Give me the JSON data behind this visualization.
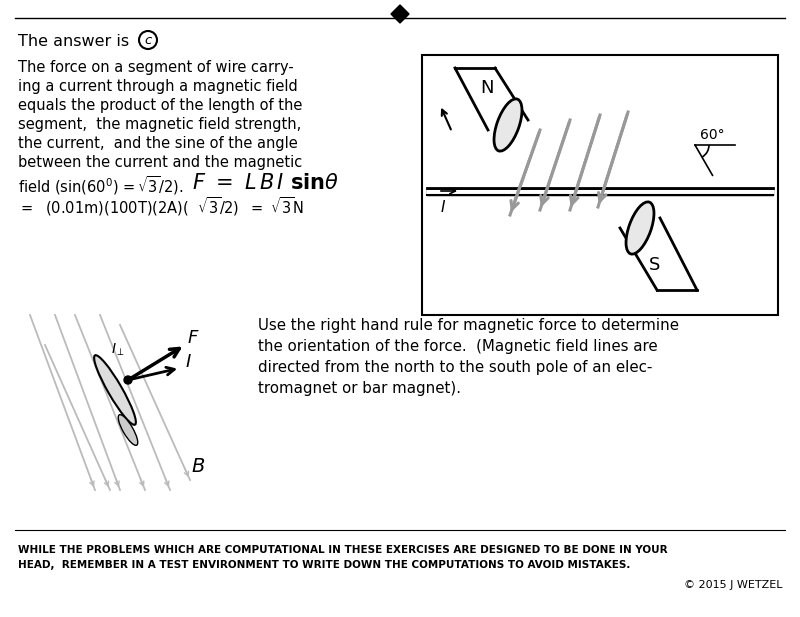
{
  "bg_color": "#ffffff",
  "body_text_lines": [
    "The force on a segment of wire carry-",
    "ing a current through a magnetic field",
    "equals the product of the length of the",
    "segment,  the magnetic field strength,",
    "the current,  and the sine of the angle",
    "between the current and the magnetic"
  ],
  "bottom_text_line1": "WHILE THE PROBLEMS WHICH ARE COMPUTATIONAL IN THESE EXERCISES ARE DESIGNED TO BE DONE IN YOUR",
  "bottom_text_line2": "HEAD,  REMEMBER IN A TEST ENVIRONMENT TO WRITE DOWN THE COMPUTATIONS TO AVOID MISTAKES.",
  "copyright_text": "© 2015 J WETZEL",
  "right_hand_rule_text": [
    "Use the right hand rule for magnetic force to determine",
    "the orientation of the force.  (Magnetic field lines are",
    "directed from the north to the south pole of an elec-",
    "tromagnet or bar magnet)."
  ],
  "arrow_gray": "#999999",
  "line_gray": "#bbbbbb"
}
